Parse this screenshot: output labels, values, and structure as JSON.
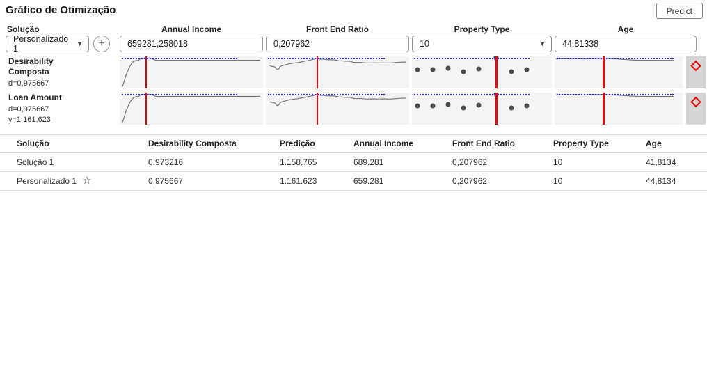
{
  "header": {
    "title": "Gráfico de Otimização",
    "predict_label": "Predict"
  },
  "controls": {
    "solution_label": "Solução",
    "solution_value": "Personalizado 1",
    "add_button_glyph": "+",
    "caret_glyph": "▼",
    "fields": [
      {
        "label": "Annual Income",
        "value": "659281,258018",
        "type": "input"
      },
      {
        "label": "Front End Ratio",
        "value": "0,207962",
        "type": "input"
      },
      {
        "label": "Property Type",
        "value": "10",
        "type": "select"
      },
      {
        "label": "Age",
        "value": "44,81338",
        "type": "input"
      }
    ]
  },
  "profiles": {
    "rows": [
      {
        "name": "Desirability Composta",
        "sub": [
          "d=0,975667"
        ]
      },
      {
        "name": "Loan Amount",
        "sub": [
          "d=0,975667",
          "y=1.161.623"
        ]
      }
    ]
  },
  "colors": {
    "red_line": "#ee0000",
    "reference_blue": "#2b2be6",
    "curve_gray": "#767676",
    "dot_gray": "#4d4d4d",
    "chart_bg": "#f4f4f4",
    "strip_bg": "#d6d6d6",
    "diamond_red": "#ee0000"
  },
  "chart_data": [
    {
      "row": "Desirability Composta",
      "x_var": "Annual Income",
      "type": "line",
      "current_x": "659281,258018",
      "red_line_x_pct": 18.3,
      "dotted_y_pct": 4.8,
      "dotted_end_pct": 82,
      "points_pct": [
        [
          2,
          93
        ],
        [
          3.5,
          72
        ],
        [
          4.5,
          57
        ],
        [
          5.5,
          47
        ],
        [
          6.5,
          36
        ],
        [
          7.5,
          28
        ],
        [
          8.5,
          21
        ],
        [
          9.3,
          18
        ],
        [
          9.8,
          14
        ],
        [
          10.5,
          15
        ],
        [
          11.4,
          12
        ],
        [
          12.3,
          13.5
        ],
        [
          13.4,
          11
        ],
        [
          14.2,
          8
        ],
        [
          15,
          7
        ],
        [
          16,
          6.5
        ],
        [
          16.7,
          6
        ],
        [
          18,
          5
        ],
        [
          19.1,
          6
        ],
        [
          20.8,
          5.2
        ],
        [
          22.4,
          6
        ],
        [
          23.2,
          8.5
        ],
        [
          24.8,
          11.3
        ],
        [
          26.5,
          12.6
        ],
        [
          28.1,
          12.3
        ],
        [
          31.4,
          12
        ],
        [
          98,
          12
        ]
      ]
    },
    {
      "row": "Desirability Composta",
      "x_var": "Front End Ratio",
      "type": "line",
      "current_x": "0,207962",
      "red_line_x_pct": 35.9,
      "dotted_y_pct": 4.8,
      "dotted_end_pct": 83,
      "points_pct": [
        [
          2.8,
          29
        ],
        [
          4.4,
          31
        ],
        [
          6,
          32
        ],
        [
          6.9,
          35
        ],
        [
          7.7,
          40.5
        ],
        [
          8.5,
          41
        ],
        [
          9.3,
          37
        ],
        [
          10.1,
          31
        ],
        [
          11.8,
          28
        ],
        [
          13.4,
          26.5
        ],
        [
          15,
          24.5
        ],
        [
          17.5,
          22
        ],
        [
          19.9,
          20.5
        ],
        [
          22.4,
          19
        ],
        [
          24.8,
          17
        ],
        [
          27.3,
          14.7
        ],
        [
          29.7,
          12.8
        ],
        [
          32.2,
          10.4
        ],
        [
          33.8,
          8.5
        ],
        [
          35.9,
          5
        ],
        [
          37.1,
          7.5
        ],
        [
          38.7,
          9
        ],
        [
          40.4,
          8.5
        ],
        [
          42,
          10.4
        ],
        [
          43.6,
          9.8
        ],
        [
          45.3,
          11
        ],
        [
          46.9,
          10.4
        ],
        [
          49.3,
          11.7
        ],
        [
          51,
          14
        ],
        [
          52.6,
          13.6
        ],
        [
          55.1,
          15
        ],
        [
          56.7,
          14.7
        ],
        [
          59.2,
          15.5
        ],
        [
          60.8,
          18
        ],
        [
          63.2,
          19
        ],
        [
          65.7,
          18.5
        ],
        [
          69,
          19.8
        ],
        [
          72.2,
          20.4
        ],
        [
          75.5,
          19.8
        ],
        [
          78.8,
          20.4
        ],
        [
          82,
          19.8
        ],
        [
          85.3,
          20.4
        ],
        [
          88.6,
          19.8
        ],
        [
          91,
          19
        ],
        [
          93.5,
          18
        ],
        [
          96.7,
          17.5
        ],
        [
          98,
          17.5
        ]
      ]
    },
    {
      "row": "Desirability Composta",
      "x_var": "Property Type",
      "type": "scatter",
      "current_x": "10",
      "red_line_x_pct": 60.3,
      "dotted_y_pct": 4.8,
      "dotted_end_pct": 84,
      "dots_pct": [
        [
          4,
          41
        ],
        [
          15,
          41.5
        ],
        [
          26,
          36.5
        ],
        [
          37,
          48.5
        ],
        [
          48,
          38
        ],
        [
          60.3,
          4.8
        ],
        [
          71,
          47.5
        ],
        [
          82,
          42
        ]
      ]
    },
    {
      "row": "Desirability Composta",
      "x_var": "Age",
      "type": "line",
      "current_x": "44,81338",
      "red_line_x_pct": 38.3,
      "dotted_y_pct": 4.8,
      "dotted_end_pct": 93,
      "points_pct": [
        [
          1,
          7.4
        ],
        [
          6.4,
          7
        ],
        [
          11.7,
          7.4
        ],
        [
          15.2,
          6.3
        ],
        [
          18.8,
          7
        ],
        [
          22.3,
          7.8
        ],
        [
          25.9,
          7
        ],
        [
          29.4,
          6.6
        ],
        [
          33,
          6.3
        ],
        [
          36.5,
          6
        ],
        [
          38.3,
          5.2
        ],
        [
          40,
          5.6
        ],
        [
          41.8,
          6.8
        ],
        [
          45.4,
          7.5
        ],
        [
          48.9,
          7.9
        ],
        [
          52.5,
          9
        ],
        [
          56,
          9.8
        ],
        [
          59.6,
          11
        ],
        [
          64.9,
          11.7
        ],
        [
          72,
          12
        ],
        [
          82.6,
          12.3
        ],
        [
          93,
          12.3
        ]
      ]
    },
    {
      "row": "Loan Amount",
      "x_var": "Annual Income",
      "type": "line",
      "current_x": "659281,258018",
      "red_line_x_pct": 18.3,
      "dotted_y_pct": 4.8,
      "dotted_end_pct": 82,
      "points_pct": [
        [
          2,
          93
        ],
        [
          3.5,
          72
        ],
        [
          4.5,
          57
        ],
        [
          5.5,
          47
        ],
        [
          6.5,
          36
        ],
        [
          7.5,
          28
        ],
        [
          8.5,
          21
        ],
        [
          9.3,
          18
        ],
        [
          9.8,
          14
        ],
        [
          10.5,
          15
        ],
        [
          11.4,
          12
        ],
        [
          12.3,
          13.5
        ],
        [
          13.4,
          11
        ],
        [
          14.2,
          8
        ],
        [
          15,
          7
        ],
        [
          16,
          6.5
        ],
        [
          16.7,
          6
        ],
        [
          18,
          5
        ],
        [
          19.1,
          6
        ],
        [
          20.8,
          5.2
        ],
        [
          22.4,
          6
        ],
        [
          23.2,
          8.5
        ],
        [
          24.8,
          11.3
        ],
        [
          26.5,
          12.6
        ],
        [
          28.1,
          12.3
        ],
        [
          31.4,
          12
        ],
        [
          98,
          12
        ]
      ]
    },
    {
      "row": "Loan Amount",
      "x_var": "Front End Ratio",
      "type": "line",
      "current_x": "0,207962",
      "red_line_x_pct": 35.9,
      "dotted_y_pct": 4.8,
      "dotted_end_pct": 83,
      "points_pct": [
        [
          2.8,
          29
        ],
        [
          4.4,
          31
        ],
        [
          6,
          32
        ],
        [
          6.9,
          35
        ],
        [
          7.7,
          40.5
        ],
        [
          8.5,
          41
        ],
        [
          9.3,
          37
        ],
        [
          10.1,
          31
        ],
        [
          11.8,
          28
        ],
        [
          13.4,
          26.5
        ],
        [
          15,
          24.5
        ],
        [
          17.5,
          22
        ],
        [
          19.9,
          20.5
        ],
        [
          22.4,
          19
        ],
        [
          24.8,
          17
        ],
        [
          27.3,
          14.7
        ],
        [
          29.7,
          12.8
        ],
        [
          32.2,
          10.4
        ],
        [
          33.8,
          8.5
        ],
        [
          35.9,
          5
        ],
        [
          37.1,
          7.5
        ],
        [
          38.7,
          9
        ],
        [
          40.4,
          8.5
        ],
        [
          42,
          10.4
        ],
        [
          43.6,
          9.8
        ],
        [
          45.3,
          11
        ],
        [
          46.9,
          10.4
        ],
        [
          49.3,
          11.7
        ],
        [
          51,
          14
        ],
        [
          52.6,
          13.6
        ],
        [
          55.1,
          15
        ],
        [
          56.7,
          14.7
        ],
        [
          59.2,
          15.5
        ],
        [
          60.8,
          18
        ],
        [
          63.2,
          19
        ],
        [
          65.7,
          18.5
        ],
        [
          69,
          19.8
        ],
        [
          72.2,
          20.4
        ],
        [
          75.5,
          19.8
        ],
        [
          78.8,
          20.4
        ],
        [
          82,
          19.8
        ],
        [
          85.3,
          20.4
        ],
        [
          88.6,
          19.8
        ],
        [
          91,
          19
        ],
        [
          93.5,
          18
        ],
        [
          96.7,
          17.5
        ],
        [
          98,
          17.5
        ]
      ]
    },
    {
      "row": "Loan Amount",
      "x_var": "Property Type",
      "type": "scatter",
      "current_x": "10",
      "red_line_x_pct": 60.3,
      "dotted_y_pct": 4.8,
      "dotted_end_pct": 84,
      "dots_pct": [
        [
          4,
          41
        ],
        [
          15,
          41.5
        ],
        [
          26,
          36.5
        ],
        [
          37,
          48.5
        ],
        [
          48,
          38
        ],
        [
          60.3,
          4.8
        ],
        [
          71,
          47.5
        ],
        [
          82,
          42
        ]
      ]
    },
    {
      "row": "Loan Amount",
      "x_var": "Age",
      "type": "line",
      "current_x": "44,81338",
      "red_line_x_pct": 38.3,
      "dotted_y_pct": 4.8,
      "dotted_end_pct": 93,
      "points_pct": [
        [
          1,
          7.4
        ],
        [
          6.4,
          7
        ],
        [
          11.7,
          7.4
        ],
        [
          15.2,
          6.3
        ],
        [
          18.8,
          7
        ],
        [
          22.3,
          7.8
        ],
        [
          25.9,
          7
        ],
        [
          29.4,
          6.6
        ],
        [
          33,
          6.3
        ],
        [
          36.5,
          6
        ],
        [
          38.3,
          5.2
        ],
        [
          40,
          5.6
        ],
        [
          41.8,
          6.8
        ],
        [
          45.4,
          7.5
        ],
        [
          48.9,
          7.9
        ],
        [
          52.5,
          9
        ],
        [
          56,
          9.8
        ],
        [
          59.6,
          11
        ],
        [
          64.9,
          11.7
        ],
        [
          72,
          12
        ],
        [
          82.6,
          12.3
        ],
        [
          93,
          12.3
        ]
      ]
    }
  ],
  "table": {
    "columns": [
      "Solução",
      "Desirability Composta",
      "Predição",
      "Annual Income",
      "Front End Ratio",
      "Property Type",
      "Age"
    ],
    "star_icon": "☆",
    "rows": [
      {
        "solution": "Solução 1",
        "starred": false,
        "values": [
          "0,973216",
          "1.158.765",
          "689.281",
          "0,207962",
          "10",
          "41,8134"
        ]
      },
      {
        "solution": "Personalizado 1",
        "starred": true,
        "values": [
          "0,975667",
          "1.161.623",
          "659.281",
          "0,207962",
          "10",
          "44,8134"
        ]
      }
    ]
  }
}
